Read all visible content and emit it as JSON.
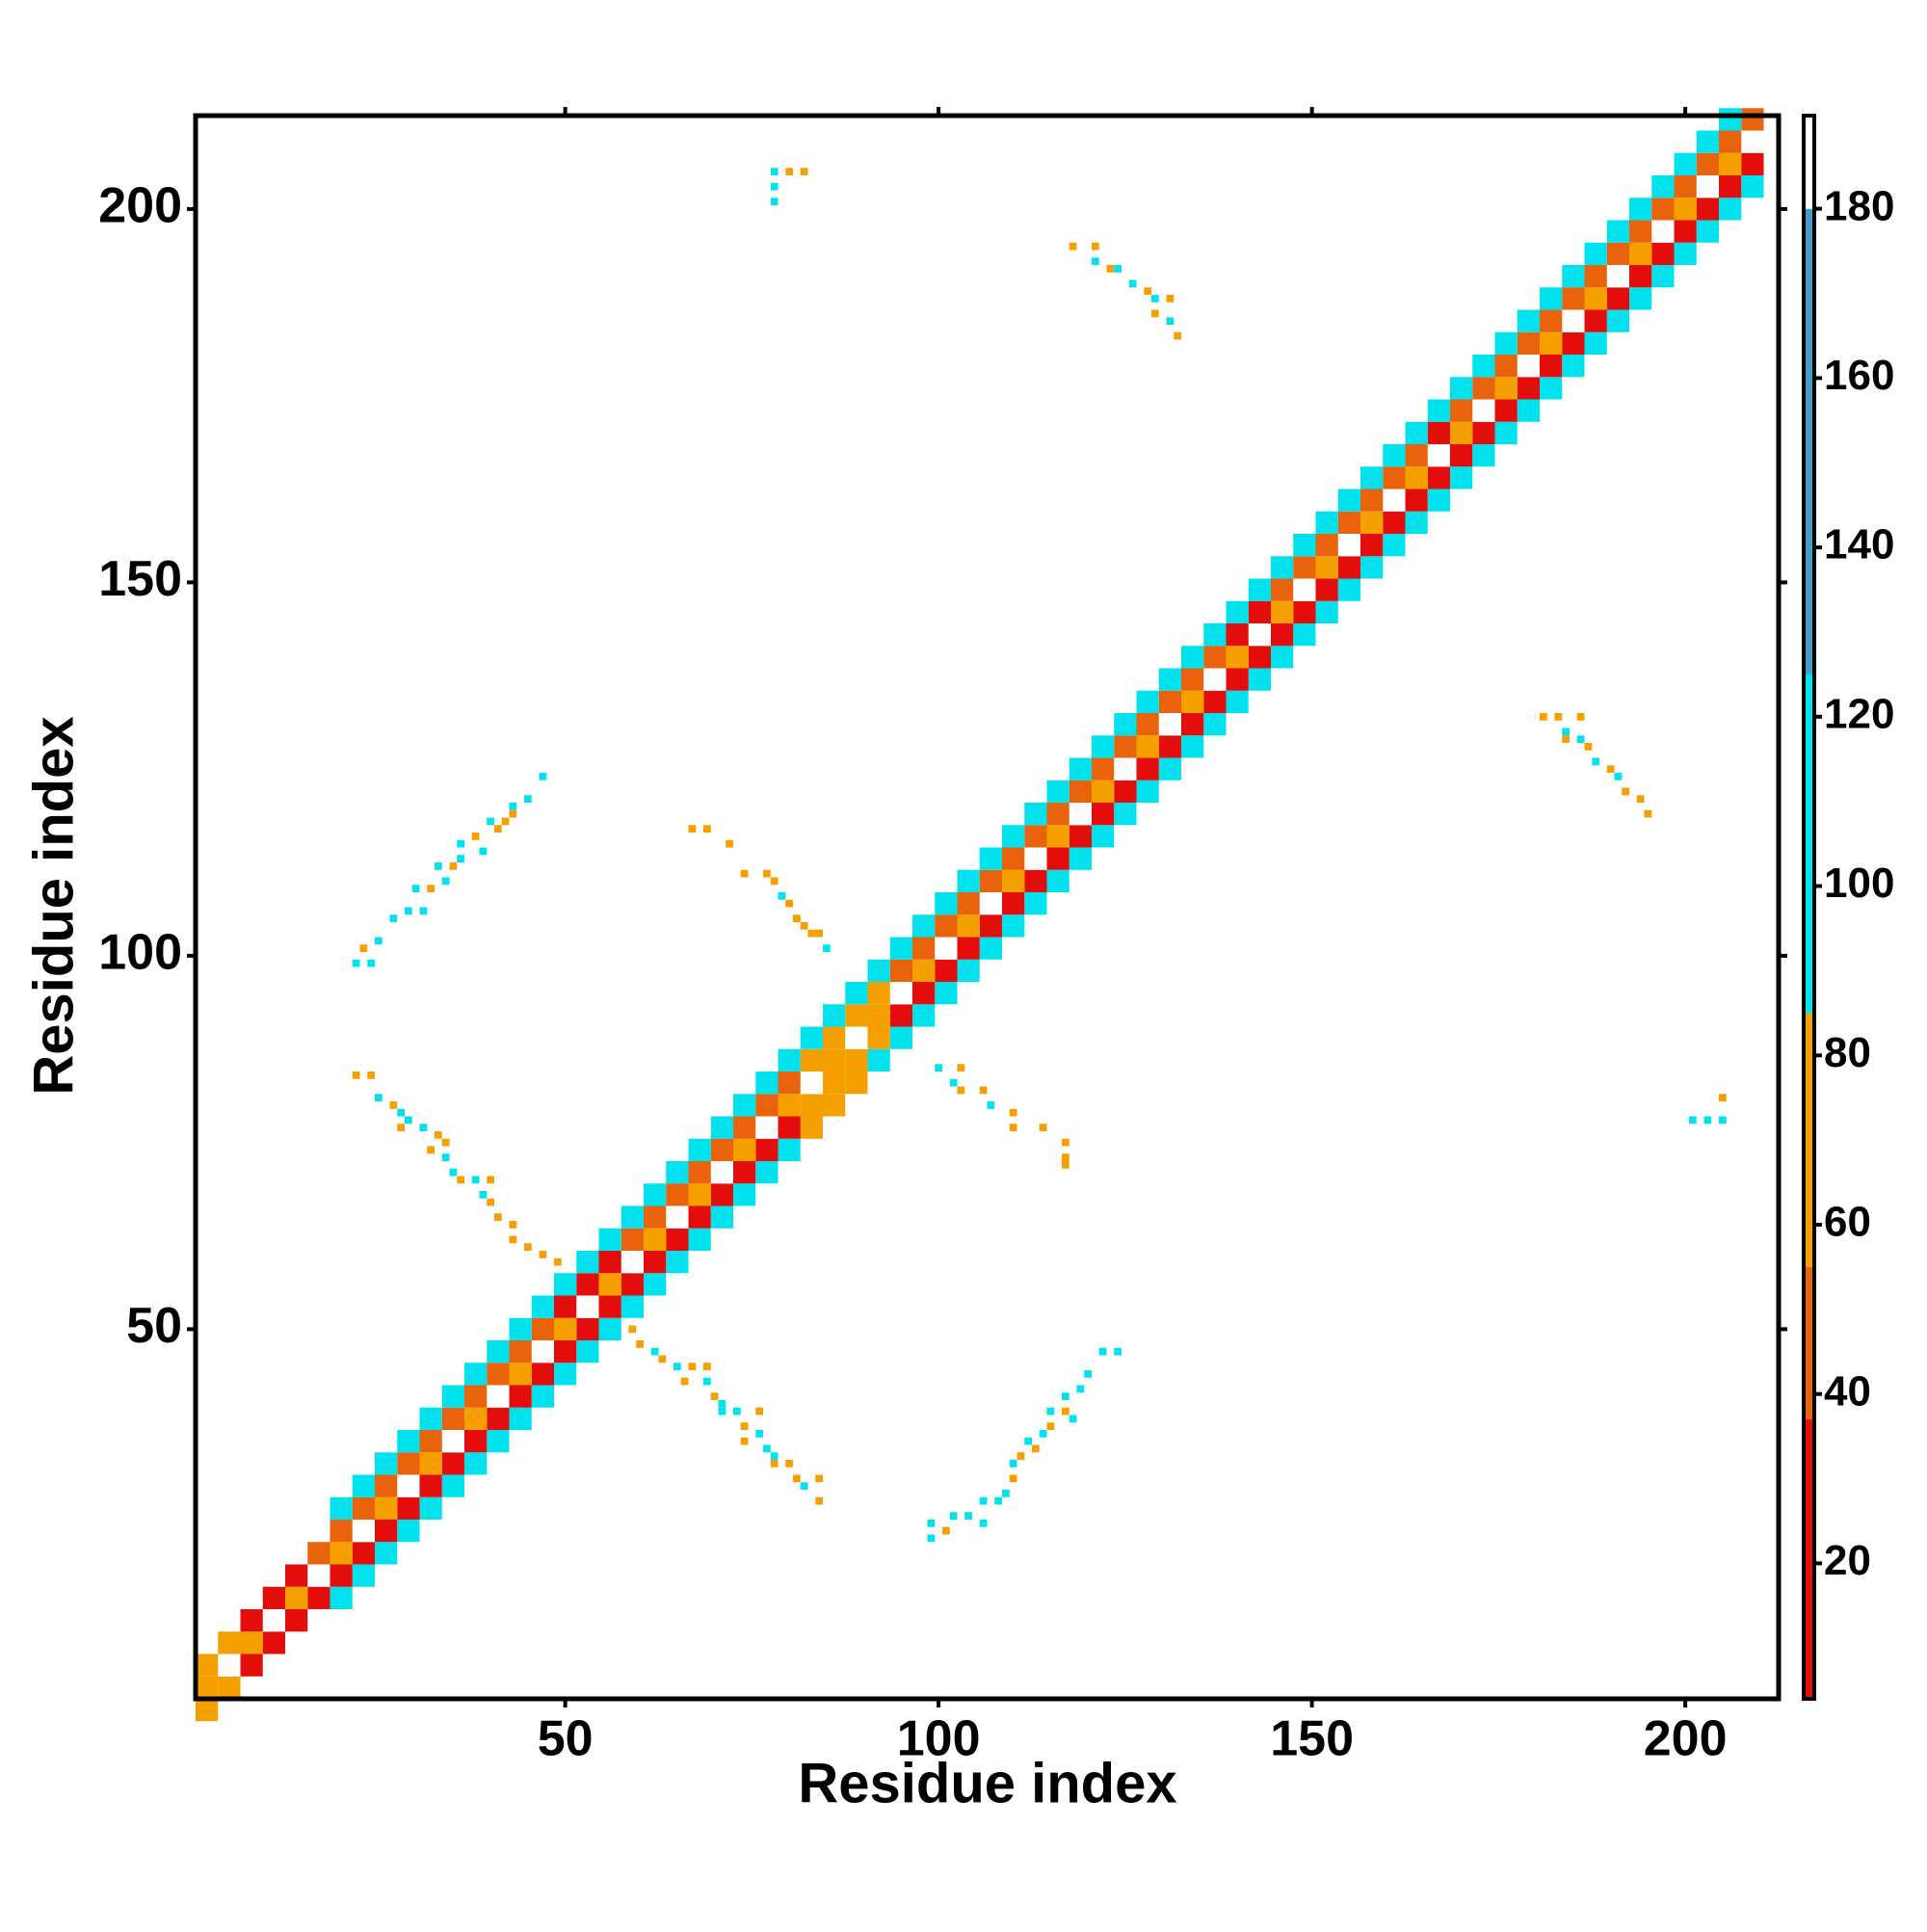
{
  "chart_data": {
    "type": "heatmap",
    "xlabel": "Residue index",
    "ylabel": "Residue index",
    "xlim": [
      0.5,
      212.5
    ],
    "ylim": [
      0.5,
      212.5
    ],
    "xticks": [
      50,
      100,
      150,
      200
    ],
    "yticks": [
      50,
      100,
      150,
      200
    ],
    "color_breaks": [
      4,
      37,
      55,
      85,
      125,
      180,
      191
    ],
    "colors": [
      "#e30e0b",
      "#e8630c",
      "#f5a000",
      "#00e3ee",
      "#3f9fc6",
      "#ffffff"
    ],
    "zticks": [
      20,
      40,
      60,
      80,
      100,
      120,
      140,
      160,
      180
    ],
    "x": [
      2,
      5,
      8,
      11,
      14,
      17,
      20,
      23,
      26,
      29,
      32,
      35,
      38,
      41,
      44,
      47,
      50,
      53,
      56,
      59,
      62,
      65,
      68,
      71,
      74,
      77,
      80,
      83,
      86,
      89,
      92,
      95,
      98,
      101,
      104,
      107,
      110,
      113,
      116,
      119,
      122,
      125,
      128,
      131,
      134,
      137,
      140,
      143,
      146,
      149,
      152,
      155,
      158,
      161,
      164,
      167,
      170,
      173,
      176,
      179,
      182,
      185,
      188,
      191,
      194,
      197,
      200,
      203,
      206,
      209
    ],
    "diagonals": [
      {
        "offset": -6,
        "values": [
          null,
          null,
          null,
          null,
          null,
          null,
          110,
          110,
          110,
          110,
          110,
          110,
          110,
          110,
          110,
          110,
          110,
          110,
          110,
          110,
          110,
          110,
          110,
          110,
          110,
          110,
          110,
          60,
          60,
          60,
          110,
          110,
          110,
          110,
          110,
          110,
          110,
          110,
          110,
          110,
          110,
          110,
          110,
          110,
          110,
          110,
          110,
          110,
          110,
          110,
          110,
          110,
          110,
          110,
          110,
          110,
          110,
          110,
          110,
          110,
          110,
          110,
          110,
          110,
          110,
          110,
          110,
          110,
          110,
          110
        ]
      },
      {
        "offset": -3,
        "values": [
          60,
          60,
          20,
          20,
          20,
          30,
          30,
          30,
          30,
          30,
          30,
          30,
          30,
          30,
          30,
          30,
          20,
          20,
          20,
          30,
          30,
          30,
          30,
          30,
          30,
          30,
          30,
          60,
          60,
          60,
          60,
          30,
          30,
          30,
          30,
          30,
          30,
          30,
          30,
          30,
          30,
          30,
          30,
          30,
          30,
          30,
          20,
          20,
          30,
          30,
          30,
          30,
          30,
          30,
          30,
          20,
          30,
          30,
          30,
          30,
          30,
          30,
          30,
          30,
          30,
          30,
          30,
          30,
          30,
          30
        ]
      },
      {
        "offset": 0,
        "values": [
          70,
          190,
          70,
          190,
          70,
          190,
          70,
          190,
          70,
          190,
          70,
          190,
          70,
          190,
          70,
          190,
          70,
          190,
          70,
          190,
          70,
          190,
          70,
          190,
          70,
          190,
          70,
          190,
          70,
          190,
          70,
          190,
          70,
          190,
          70,
          190,
          70,
          190,
          70,
          190,
          70,
          190,
          70,
          190,
          70,
          190,
          70,
          190,
          70,
          190,
          70,
          190,
          70,
          190,
          70,
          190,
          70,
          190,
          70,
          190,
          70,
          190,
          70,
          190,
          70,
          190,
          70,
          190,
          70,
          190
        ]
      },
      {
        "offset": 3,
        "values": [
          60,
          60,
          20,
          20,
          20,
          45,
          45,
          45,
          45,
          45,
          45,
          45,
          45,
          45,
          45,
          45,
          20,
          20,
          20,
          45,
          45,
          45,
          45,
          45,
          45,
          45,
          45,
          60,
          60,
          60,
          60,
          45,
          45,
          45,
          45,
          45,
          45,
          45,
          45,
          45,
          45,
          45,
          45,
          45,
          45,
          45,
          20,
          20,
          45,
          45,
          45,
          45,
          45,
          45,
          45,
          20,
          45,
          45,
          45,
          45,
          45,
          45,
          45,
          45,
          45,
          45,
          45,
          45,
          45,
          45
        ]
      },
      {
        "offset": 6,
        "values": [
          null,
          null,
          null,
          null,
          null,
          null,
          110,
          110,
          110,
          110,
          110,
          110,
          110,
          110,
          110,
          110,
          110,
          110,
          110,
          110,
          110,
          110,
          110,
          110,
          110,
          110,
          110,
          110,
          110,
          110,
          110,
          110,
          110,
          110,
          110,
          110,
          110,
          110,
          110,
          110,
          110,
          110,
          110,
          110,
          110,
          110,
          110,
          110,
          110,
          110,
          110,
          110,
          110,
          110,
          110,
          110,
          110,
          110,
          110,
          110,
          110,
          110,
          110,
          110,
          110,
          110,
          110,
          110,
          110,
          null
        ]
      }
    ],
    "contacts": [
      [
        22,
        99,
        100
      ],
      [
        24,
        99,
        100
      ],
      [
        23,
        101,
        60
      ],
      [
        25,
        102,
        100
      ],
      [
        27,
        105,
        100
      ],
      [
        29,
        106,
        100
      ],
      [
        30,
        109,
        100
      ],
      [
        32,
        109,
        60
      ],
      [
        31,
        106,
        100
      ],
      [
        33,
        112,
        100
      ],
      [
        35,
        112,
        60
      ],
      [
        36,
        113,
        100
      ],
      [
        34,
        110,
        100
      ],
      [
        36,
        115,
        100
      ],
      [
        38,
        116,
        60
      ],
      [
        39,
        114,
        100
      ],
      [
        40,
        118,
        100
      ],
      [
        42,
        118,
        60
      ],
      [
        41,
        117,
        60
      ],
      [
        43,
        120,
        100
      ],
      [
        45,
        121,
        100
      ],
      [
        47,
        124,
        100
      ],
      [
        43,
        119,
        60
      ],
      [
        22,
        84,
        60
      ],
      [
        24,
        84,
        60
      ],
      [
        25,
        81,
        100
      ],
      [
        27,
        80,
        60
      ],
      [
        28,
        79,
        100
      ],
      [
        28,
        77,
        60
      ],
      [
        29,
        78,
        100
      ],
      [
        31,
        77,
        100
      ],
      [
        33,
        76,
        60
      ],
      [
        34,
        75,
        60
      ],
      [
        32,
        74,
        60
      ],
      [
        34,
        73,
        100
      ],
      [
        35,
        71,
        100
      ],
      [
        36,
        70,
        60
      ],
      [
        38,
        70,
        100
      ],
      [
        40,
        70,
        60
      ],
      [
        39,
        68,
        100
      ],
      [
        40,
        67,
        60
      ],
      [
        41,
        65,
        60
      ],
      [
        43,
        64,
        60
      ],
      [
        43,
        62,
        60
      ],
      [
        45,
        61,
        60
      ],
      [
        47,
        60,
        60
      ],
      [
        49,
        59,
        60
      ],
      [
        59,
        50,
        60
      ],
      [
        60,
        48,
        60
      ],
      [
        62,
        47,
        100
      ],
      [
        63,
        46,
        60
      ],
      [
        65,
        45,
        100
      ],
      [
        67,
        45,
        60
      ],
      [
        69,
        45,
        60
      ],
      [
        66,
        43,
        60
      ],
      [
        69,
        43,
        100
      ],
      [
        70,
        41,
        60
      ],
      [
        71,
        40,
        100
      ],
      [
        71,
        39,
        100
      ],
      [
        73,
        39,
        100
      ],
      [
        76,
        39,
        60
      ],
      [
        74,
        37,
        60
      ],
      [
        74,
        35,
        60
      ],
      [
        76,
        36,
        100
      ],
      [
        77,
        34,
        100
      ],
      [
        78,
        33,
        100
      ],
      [
        78,
        32,
        60
      ],
      [
        80,
        32,
        60
      ],
      [
        81,
        30,
        60
      ],
      [
        82,
        29,
        100
      ],
      [
        84,
        30,
        60
      ],
      [
        84,
        27,
        60
      ],
      [
        99,
        22,
        100
      ],
      [
        99,
        24,
        100
      ],
      [
        101,
        23,
        60
      ],
      [
        102,
        25,
        100
      ],
      [
        104,
        25,
        100
      ],
      [
        106,
        24,
        100
      ],
      [
        106,
        27,
        100
      ],
      [
        108,
        27,
        100
      ],
      [
        109,
        28,
        100
      ],
      [
        110,
        30,
        60
      ],
      [
        110,
        32,
        100
      ],
      [
        111,
        33,
        60
      ],
      [
        112,
        35,
        100
      ],
      [
        113,
        34,
        60
      ],
      [
        114,
        36,
        100
      ],
      [
        115,
        37,
        60
      ],
      [
        115,
        39,
        100
      ],
      [
        117,
        39,
        60
      ],
      [
        118,
        38,
        100
      ],
      [
        117,
        41,
        100
      ],
      [
        119,
        42,
        100
      ],
      [
        120,
        44,
        100
      ],
      [
        122,
        47,
        100
      ],
      [
        124,
        47,
        100
      ],
      [
        67,
        117,
        60
      ],
      [
        69,
        117,
        60
      ],
      [
        72,
        115,
        60
      ],
      [
        74,
        111,
        60
      ],
      [
        77,
        111,
        60
      ],
      [
        78,
        110,
        60
      ],
      [
        79,
        108,
        100
      ],
      [
        80,
        107,
        60
      ],
      [
        81,
        105,
        60
      ],
      [
        82,
        104,
        60
      ],
      [
        83,
        103,
        60
      ],
      [
        84,
        103,
        60
      ],
      [
        85,
        101,
        100
      ],
      [
        100,
        85,
        100
      ],
      [
        103,
        85,
        60
      ],
      [
        102,
        83,
        100
      ],
      [
        103,
        82,
        60
      ],
      [
        106,
        82,
        60
      ],
      [
        107,
        80,
        100
      ],
      [
        110,
        79,
        60
      ],
      [
        110,
        77,
        60
      ],
      [
        114,
        77,
        60
      ],
      [
        117,
        75,
        60
      ],
      [
        117,
        73,
        60
      ],
      [
        117,
        72,
        60
      ],
      [
        78,
        205,
        100
      ],
      [
        80,
        205,
        60
      ],
      [
        82,
        205,
        60
      ],
      [
        78,
        203,
        100
      ],
      [
        78,
        201,
        100
      ],
      [
        118,
        195,
        60
      ],
      [
        121,
        195,
        60
      ],
      [
        121,
        193,
        100
      ],
      [
        123,
        192,
        60
      ],
      [
        124,
        192,
        100
      ],
      [
        126,
        190,
        100
      ],
      [
        128,
        189,
        60
      ],
      [
        129,
        188,
        100
      ],
      [
        131,
        188,
        60
      ],
      [
        129,
        186,
        60
      ],
      [
        131,
        185,
        100
      ],
      [
        132,
        183,
        60
      ],
      [
        181,
        132,
        60
      ],
      [
        183,
        132,
        60
      ],
      [
        186,
        132,
        60
      ],
      [
        184,
        130,
        100
      ],
      [
        184,
        129,
        60
      ],
      [
        186,
        129,
        100
      ],
      [
        187,
        128,
        60
      ],
      [
        188,
        126,
        100
      ],
      [
        190,
        125,
        60
      ],
      [
        191,
        124,
        100
      ],
      [
        192,
        122,
        60
      ],
      [
        194,
        121,
        60
      ],
      [
        195,
        119,
        60
      ],
      [
        201,
        78,
        100
      ],
      [
        203,
        78,
        100
      ],
      [
        205,
        78,
        100
      ],
      [
        205,
        81,
        60
      ]
    ]
  }
}
